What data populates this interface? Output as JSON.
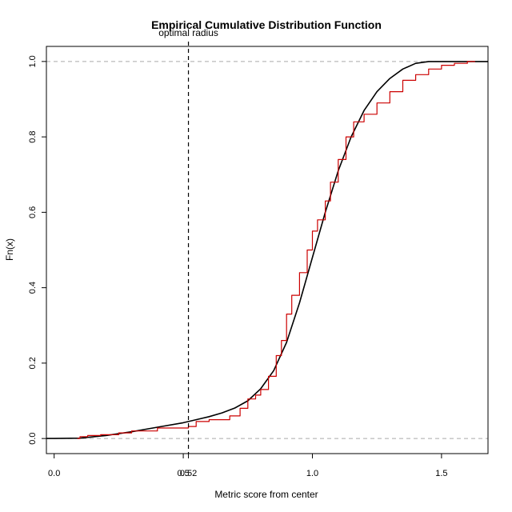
{
  "chart_data": {
    "type": "line",
    "title": "Empirical Cumulative Distribution Function",
    "xlabel": "Metric score from center",
    "ylabel": "Fn(x)",
    "xlim": [
      -0.03,
      1.68
    ],
    "ylim": [
      -0.04,
      1.04
    ],
    "x_ticks": [
      {
        "value": 0.0,
        "label": "0.0"
      },
      {
        "value": 0.5,
        "label": "0.5"
      },
      {
        "value": 0.52,
        "label": "0.52"
      },
      {
        "value": 1.0,
        "label": "1.0"
      },
      {
        "value": 1.5,
        "label": "1.5"
      }
    ],
    "y_ticks": [
      {
        "value": 0.0,
        "label": "0.0"
      },
      {
        "value": 0.2,
        "label": "0.2"
      },
      {
        "value": 0.4,
        "label": "0.4"
      },
      {
        "value": 0.6,
        "label": "0.6"
      },
      {
        "value": 0.8,
        "label": "0.8"
      },
      {
        "value": 1.0,
        "label": "1.0"
      }
    ],
    "reference_lines": [
      0,
      1
    ],
    "vline": {
      "x": 0.52,
      "label": "optimal radius"
    },
    "grid": false,
    "series": [
      {
        "color": "#000000",
        "style": "smooth",
        "points": [
          [
            -0.03,
            0.0
          ],
          [
            0.0,
            0.0
          ],
          [
            0.1,
            0.001
          ],
          [
            0.2,
            0.008
          ],
          [
            0.3,
            0.018
          ],
          [
            0.4,
            0.03
          ],
          [
            0.5,
            0.042
          ],
          [
            0.55,
            0.05
          ],
          [
            0.6,
            0.058
          ],
          [
            0.65,
            0.068
          ],
          [
            0.7,
            0.081
          ],
          [
            0.75,
            0.1
          ],
          [
            0.8,
            0.132
          ],
          [
            0.85,
            0.18
          ],
          [
            0.9,
            0.255
          ],
          [
            0.95,
            0.36
          ],
          [
            1.0,
            0.48
          ],
          [
            1.05,
            0.6
          ],
          [
            1.1,
            0.71
          ],
          [
            1.15,
            0.8
          ],
          [
            1.2,
            0.87
          ],
          [
            1.25,
            0.92
          ],
          [
            1.3,
            0.955
          ],
          [
            1.35,
            0.98
          ],
          [
            1.4,
            0.995
          ],
          [
            1.45,
            1.0
          ],
          [
            1.68,
            1.0
          ]
        ]
      },
      {
        "color": "#cc0000",
        "style": "step",
        "points": [
          [
            0.09,
            0.0
          ],
          [
            0.1,
            0.005
          ],
          [
            0.13,
            0.008
          ],
          [
            0.18,
            0.01
          ],
          [
            0.25,
            0.015
          ],
          [
            0.3,
            0.02
          ],
          [
            0.4,
            0.028
          ],
          [
            0.52,
            0.032
          ],
          [
            0.55,
            0.045
          ],
          [
            0.6,
            0.05
          ],
          [
            0.68,
            0.06
          ],
          [
            0.72,
            0.08
          ],
          [
            0.75,
            0.105
          ],
          [
            0.78,
            0.115
          ],
          [
            0.8,
            0.13
          ],
          [
            0.83,
            0.165
          ],
          [
            0.86,
            0.22
          ],
          [
            0.88,
            0.26
          ],
          [
            0.9,
            0.33
          ],
          [
            0.92,
            0.38
          ],
          [
            0.95,
            0.44
          ],
          [
            0.98,
            0.5
          ],
          [
            1.0,
            0.55
          ],
          [
            1.02,
            0.58
          ],
          [
            1.05,
            0.63
          ],
          [
            1.07,
            0.68
          ],
          [
            1.1,
            0.74
          ],
          [
            1.13,
            0.8
          ],
          [
            1.16,
            0.84
          ],
          [
            1.2,
            0.86
          ],
          [
            1.25,
            0.89
          ],
          [
            1.3,
            0.92
          ],
          [
            1.35,
            0.95
          ],
          [
            1.4,
            0.965
          ],
          [
            1.45,
            0.98
          ],
          [
            1.5,
            0.99
          ],
          [
            1.55,
            0.995
          ],
          [
            1.6,
            1.0
          ],
          [
            1.63,
            1.0
          ]
        ]
      }
    ]
  }
}
